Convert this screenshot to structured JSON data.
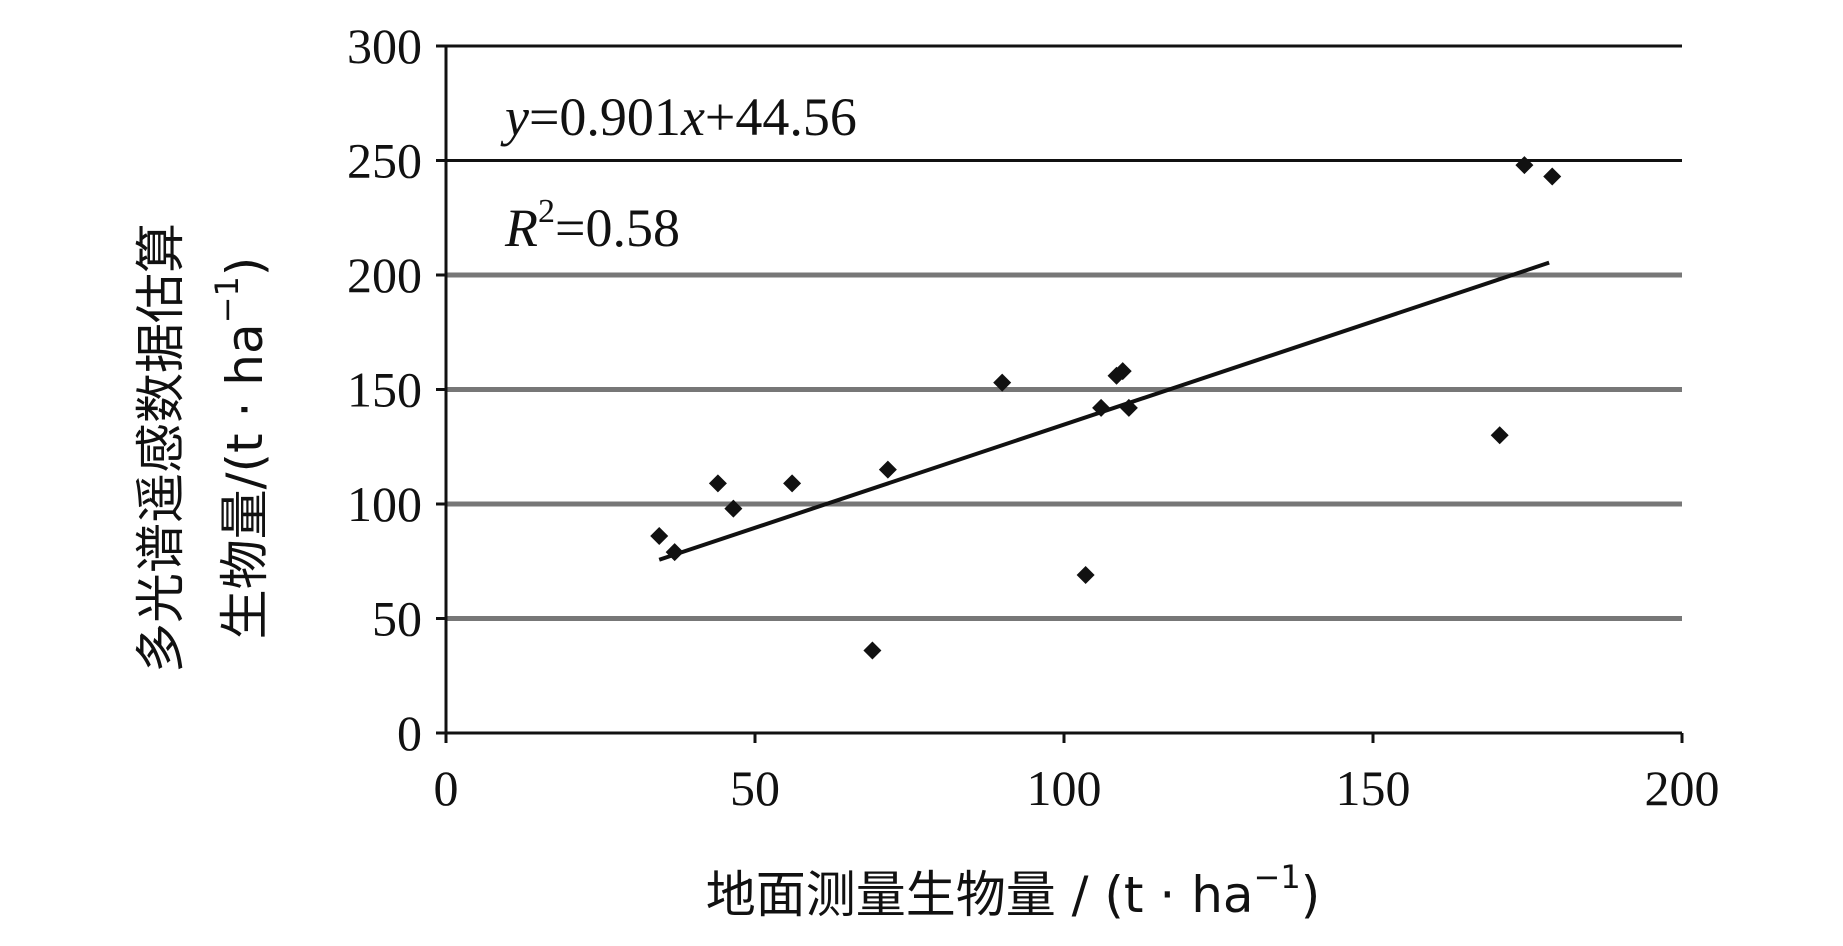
{
  "chart_data": {
    "type": "scatter",
    "xlabel": "地面测量生物量 / (t · ha",
    "xlabel_sup": "−1",
    "xlabel_close": ")",
    "ylabel_line1": "多光谱遥感数据估算",
    "ylabel_line2": "生物量/(t · ha",
    "ylabel_line2_sup": "−1",
    "ylabel_line2_close": ")",
    "xlim": [
      0,
      200
    ],
    "ylim": [
      0,
      300
    ],
    "x_ticks": [
      "0",
      "50",
      "100",
      "150",
      "200"
    ],
    "y_ticks": [
      "0",
      "50",
      "100",
      "150",
      "200",
      "250",
      "300"
    ],
    "grid": "horizontal",
    "colors": {
      "marker": "#111111",
      "grid_major": "#111111",
      "grid_minor": "#777777",
      "trendline": "#111111"
    },
    "annotation": {
      "eq_y": "y",
      "eq_mid": "=0.901",
      "eq_x": "x",
      "eq_rest": "+44.56",
      "r_letter": "R",
      "r_sup": "2",
      "r_value": "=0.58"
    },
    "trendline": {
      "slope": 0.901,
      "intercept": 44.56,
      "x_start": 34.5,
      "x_end": 178.5
    },
    "points": [
      {
        "x": 34.5,
        "y": 86
      },
      {
        "x": 37,
        "y": 79
      },
      {
        "x": 44,
        "y": 109
      },
      {
        "x": 46.5,
        "y": 98
      },
      {
        "x": 56,
        "y": 109
      },
      {
        "x": 69,
        "y": 36
      },
      {
        "x": 71.5,
        "y": 115
      },
      {
        "x": 90,
        "y": 153
      },
      {
        "x": 103.5,
        "y": 69
      },
      {
        "x": 106,
        "y": 142
      },
      {
        "x": 108.5,
        "y": 156
      },
      {
        "x": 109.5,
        "y": 158
      },
      {
        "x": 110.5,
        "y": 142
      },
      {
        "x": 170.5,
        "y": 130
      },
      {
        "x": 174.5,
        "y": 248
      },
      {
        "x": 179,
        "y": 243
      }
    ]
  }
}
